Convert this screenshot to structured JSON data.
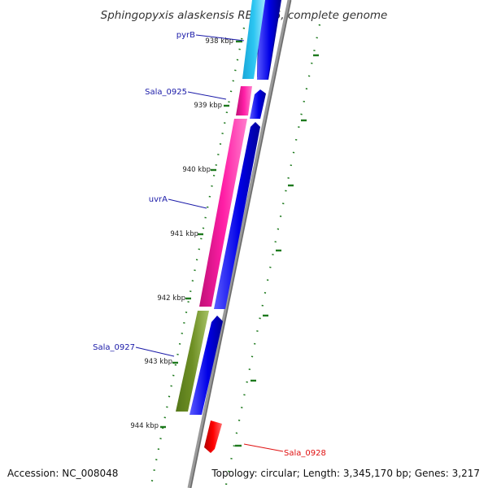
{
  "title": "Sphingopyxis alaskensis RB2256, complete genome",
  "accession": "Accession: NC_008048",
  "topology": "Topology: circular; Length: 3,345,170 bp; Genes: 3,217",
  "ticks": [
    "938 kbp",
    "939 kbp",
    "940 kbp",
    "941 kbp",
    "942 kbp",
    "943 kbp",
    "944 kbp"
  ],
  "genes": [
    {
      "label": "pyrB",
      "color": "#1fb8e8"
    },
    {
      "label": "Sala_0925",
      "color": "#ff1aa0"
    },
    {
      "label": "uvrA",
      "color": "#ff1aa0"
    },
    {
      "label": "Sala_0927",
      "color": "#6b8e23"
    },
    {
      "label": "Sala_0928",
      "color": "#ff0000"
    }
  ],
  "colors": {
    "cds_blue": "#0a00f0",
    "backbone": "#999999",
    "tick_green": "#1e7a1e",
    "label_blue": "#1a1aa8",
    "label_red": "#e01010"
  }
}
